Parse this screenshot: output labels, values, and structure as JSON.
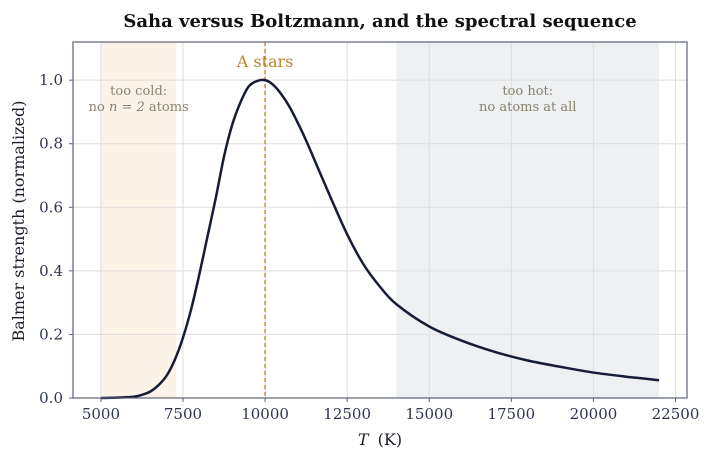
{
  "chart_data": {
    "type": "line",
    "title": "Saha versus Boltzmann, and the spectral sequence",
    "xlabel_var": "T",
    "xlabel_unit": "(K)",
    "ylabel": "Balmer strength (normalized)",
    "xlim": [
      4150,
      22850
    ],
    "ylim": [
      0,
      1.12
    ],
    "x_ticks": [
      5000,
      7500,
      10000,
      12500,
      15000,
      17500,
      20000,
      22500
    ],
    "y_ticks": [
      0.0,
      0.2,
      0.4,
      0.6,
      0.8,
      1.0
    ],
    "grid": true,
    "colors": {
      "line": "#161c36",
      "cold_band": "#fbf3e7",
      "hot_band": "#eef0f2",
      "peak_line": "#c8912e",
      "grid": "#dedede",
      "frame": "#5a607a"
    },
    "series": [
      {
        "x": [
          5000,
          5500,
          6000,
          6250,
          6500,
          6750,
          7000,
          7250,
          7500,
          7750,
          8000,
          8250,
          8500,
          8750,
          9000,
          9250,
          9500,
          9750,
          10000,
          10250,
          10500,
          10750,
          11000,
          11250,
          11500,
          12000,
          12500,
          13000,
          13500,
          14000,
          15000,
          16000,
          17000,
          18000,
          19000,
          20000,
          21000,
          22000
        ],
        "y": [
          0.0,
          0.001,
          0.004,
          0.01,
          0.02,
          0.04,
          0.07,
          0.12,
          0.19,
          0.28,
          0.39,
          0.51,
          0.63,
          0.76,
          0.86,
          0.93,
          0.98,
          0.997,
          1.0,
          0.985,
          0.955,
          0.915,
          0.865,
          0.81,
          0.75,
          0.63,
          0.515,
          0.42,
          0.35,
          0.295,
          0.225,
          0.18,
          0.145,
          0.118,
          0.098,
          0.08,
          0.067,
          0.056
        ]
      }
    ],
    "bands": [
      {
        "x0": 5000,
        "x1": 7300,
        "label_line1": "too cold:",
        "label_line2_pre": "no ",
        "label_line2_math": "n = 2",
        "label_line2_post": " atoms"
      },
      {
        "x0": 14000,
        "x1": 22000,
        "label_line1": "too hot:",
        "label_line2": "no atoms at all"
      }
    ],
    "peak": {
      "x": 10000,
      "label": "A stars"
    }
  }
}
